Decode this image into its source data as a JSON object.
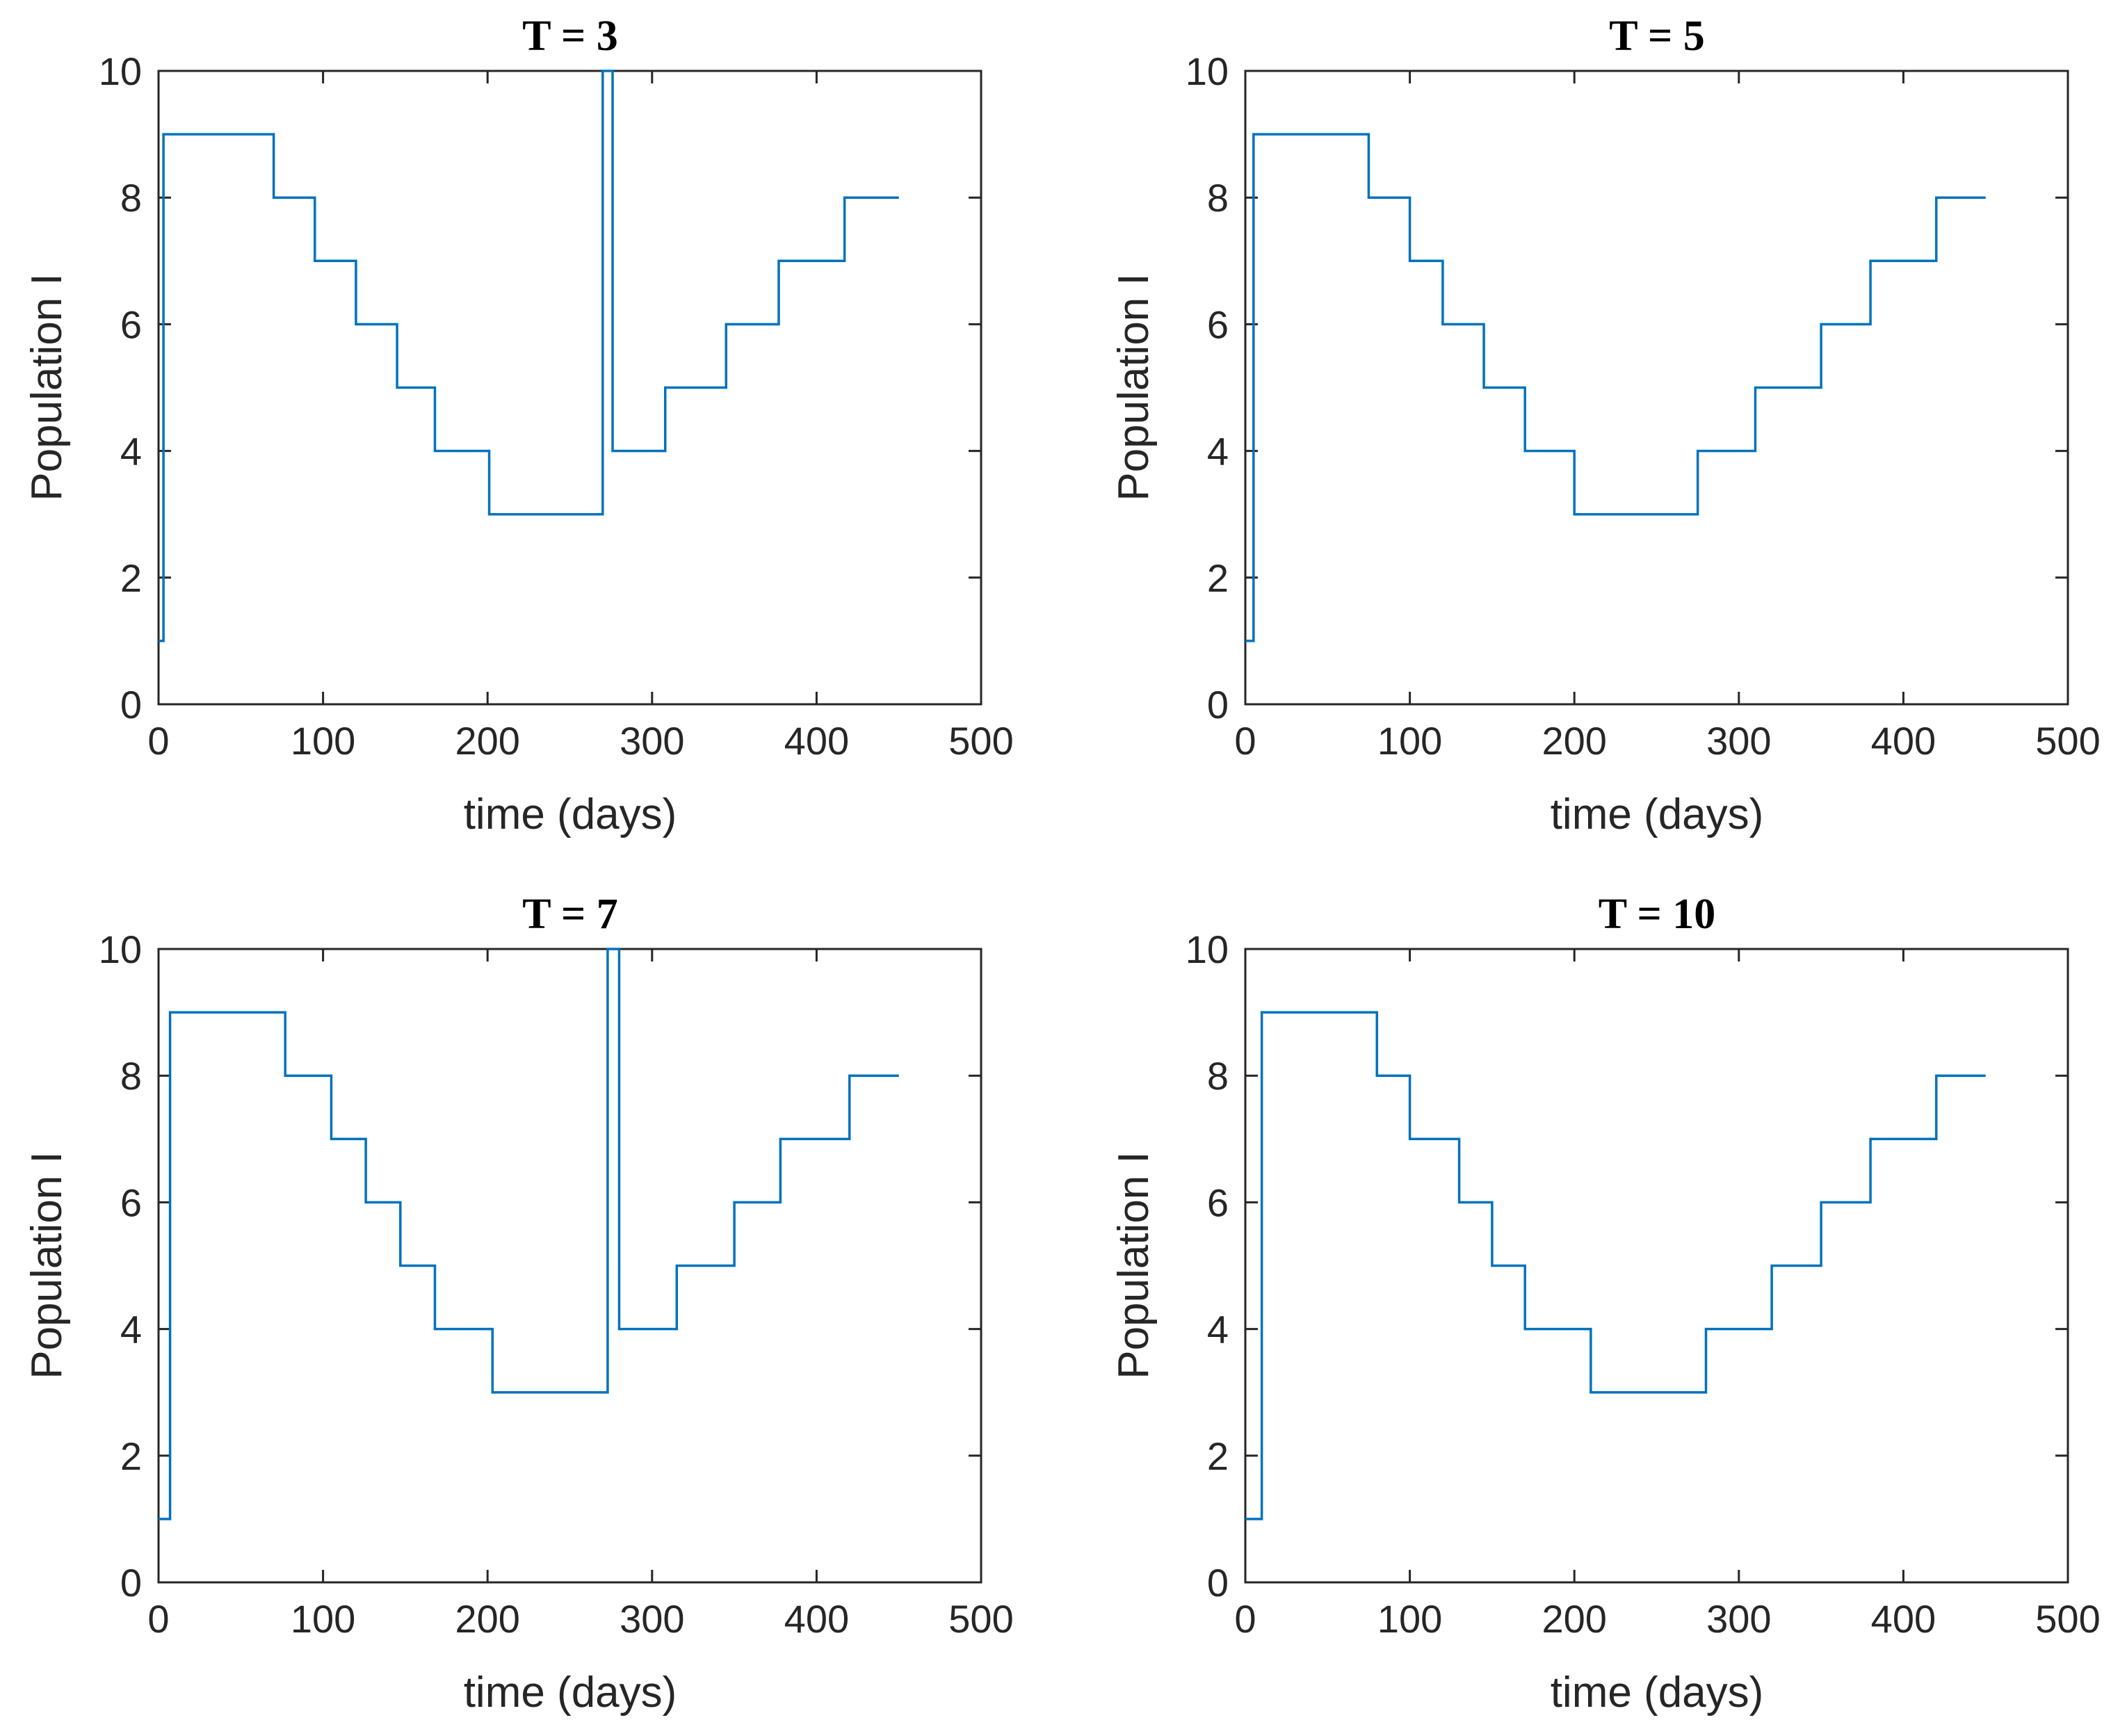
{
  "line_color": "#0072BD",
  "chart_data": [
    {
      "type": "line",
      "title": "T = 3",
      "xlabel": "time (days)",
      "ylabel": "Population I",
      "xlim": [
        0,
        500
      ],
      "ylim": [
        0,
        10
      ],
      "xticks": [
        0,
        100,
        200,
        300,
        400,
        500
      ],
      "yticks": [
        0,
        2,
        4,
        6,
        8,
        10
      ],
      "step": "post",
      "x": [
        0,
        3,
        70,
        95,
        120,
        145,
        168,
        201,
        270,
        276,
        308,
        345,
        377,
        417,
        450
      ],
      "y": [
        1,
        9,
        8,
        7,
        6,
        5,
        4,
        3,
        10,
        4,
        5,
        6,
        7,
        8,
        8
      ]
    },
    {
      "type": "line",
      "title": "T = 5",
      "xlabel": "time (days)",
      "ylabel": "Population I",
      "xlim": [
        0,
        500
      ],
      "ylim": [
        0,
        10
      ],
      "xticks": [
        0,
        100,
        200,
        300,
        400,
        500
      ],
      "yticks": [
        0,
        2,
        4,
        6,
        8,
        10
      ],
      "step": "post",
      "x": [
        0,
        5,
        75,
        100,
        120,
        145,
        170,
        200,
        275,
        310,
        350,
        380,
        420,
        450
      ],
      "y": [
        1,
        9,
        8,
        7,
        6,
        5,
        4,
        3,
        4,
        5,
        6,
        7,
        8,
        8
      ]
    },
    {
      "type": "line",
      "title": "T = 7",
      "xlabel": "time (days)",
      "ylabel": "Population I",
      "xlim": [
        0,
        500
      ],
      "ylim": [
        0,
        10
      ],
      "xticks": [
        0,
        100,
        200,
        300,
        400,
        500
      ],
      "yticks": [
        0,
        2,
        4,
        6,
        8,
        10
      ],
      "step": "post",
      "x": [
        0,
        7,
        77,
        105,
        126,
        147,
        168,
        203,
        273,
        280,
        315,
        350,
        378,
        420,
        450
      ],
      "y": [
        1,
        9,
        8,
        7,
        6,
        5,
        4,
        3,
        10,
        4,
        5,
        6,
        7,
        8,
        8
      ]
    },
    {
      "type": "line",
      "title": "T = 10",
      "xlabel": "time (days)",
      "ylabel": "Population I",
      "xlim": [
        0,
        500
      ],
      "ylim": [
        0,
        10
      ],
      "xticks": [
        0,
        100,
        200,
        300,
        400,
        500
      ],
      "yticks": [
        0,
        2,
        4,
        6,
        8,
        10
      ],
      "step": "post",
      "x": [
        0,
        10,
        80,
        100,
        130,
        150,
        170,
        210,
        280,
        320,
        350,
        380,
        420,
        450
      ],
      "y": [
        1,
        9,
        8,
        7,
        6,
        5,
        4,
        3,
        4,
        5,
        6,
        7,
        8,
        8
      ]
    }
  ]
}
